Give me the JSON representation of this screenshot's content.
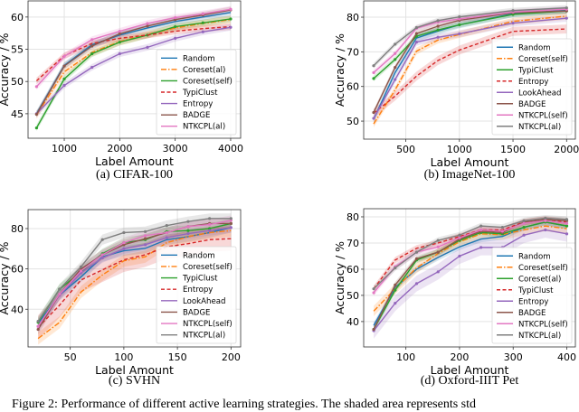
{
  "figure_caption": "Figure 2: Performance of different active learning strategies. The shaded area represents std",
  "style": {
    "colors": [
      "#1f77b4",
      "#ff7f0e",
      "#2ca02c",
      "#d62728",
      "#9467bd",
      "#8c564b",
      "#e377c2",
      "#7f7f7f"
    ],
    "dashes": [
      "",
      "6,2,1.5,2",
      "",
      "4,2.5",
      "",
      "",
      "",
      ""
    ]
  },
  "chart_data": [
    {
      "type": "line",
      "caption": "(a) CIFAR-100",
      "xlabel": "Label Amount",
      "ylabel": "Accuracy / %",
      "xlim": [
        347,
        4180
      ],
      "ylim": [
        41.2,
        62.5
      ],
      "xticks": [
        1000,
        2000,
        3000,
        4000
      ],
      "yticks": [
        45,
        50,
        55,
        60
      ],
      "grid": true,
      "legend_position": "lower-right",
      "x": [
        500,
        1000,
        1500,
        2000,
        2500,
        3000,
        3500,
        4000
      ],
      "series": [
        {
          "name": "Random",
          "values": [
            45.0,
            52.5,
            55.7,
            57.2,
            58.3,
            59.3,
            60.0,
            60.7
          ],
          "std": 0.5
        },
        {
          "name": "Coreset(al)",
          "values": [
            44.8,
            51.5,
            54.5,
            56.2,
            57.3,
            58.3,
            59.0,
            59.6
          ],
          "std": 0.6
        },
        {
          "name": "Coreset(self)",
          "values": [
            42.8,
            50.4,
            54.3,
            56.1,
            57.2,
            58.5,
            59.1,
            59.7
          ],
          "std": 0.5
        },
        {
          "name": "TypiClust",
          "values": [
            50.1,
            54.0,
            55.9,
            56.7,
            57.2,
            57.8,
            58.2,
            58.5
          ],
          "std": 0.5
        },
        {
          "name": "Entropy",
          "values": [
            45.0,
            49.4,
            52.2,
            54.3,
            55.3,
            56.7,
            57.7,
            58.4
          ],
          "std": 0.5
        },
        {
          "name": "BADGE",
          "values": [
            44.9,
            52.4,
            55.5,
            57.4,
            58.6,
            59.6,
            60.3,
            61.1
          ],
          "std": 0.5
        },
        {
          "name": "NTKCPL(al)",
          "values": [
            49.2,
            53.9,
            56.5,
            57.8,
            59.0,
            59.9,
            60.5,
            61.2
          ],
          "std": 0.5
        }
      ]
    },
    {
      "type": "line",
      "caption": "(b) ImageNet-100",
      "xlabel": "Label Amount",
      "ylabel": "Accuracy / %",
      "xlim": [
        107,
        2082
      ],
      "ylim": [
        44.8,
        84.7
      ],
      "xticks": [
        500,
        1000,
        1500,
        2000
      ],
      "yticks": [
        50,
        60,
        70,
        80
      ],
      "grid": true,
      "legend_position": "lower-right",
      "x": [
        200,
        400,
        600,
        800,
        1000,
        1500,
        2000
      ],
      "series": [
        {
          "name": "Random",
          "values": [
            50.5,
            64.0,
            74.0,
            76.0,
            77.8,
            81.0,
            82.0
          ],
          "std": 1.0
        },
        {
          "name": "Coreset(self)",
          "values": [
            49.2,
            59.0,
            70.2,
            73.4,
            75.0,
            78.8,
            80.3
          ],
          "std": 1.0
        },
        {
          "name": "TypiClust",
          "values": [
            62.3,
            67.8,
            74.5,
            76.3,
            77.8,
            80.8,
            81.8
          ],
          "std": 0.8
        },
        {
          "name": "Entropy",
          "values": [
            52.3,
            57.2,
            63.0,
            67.5,
            70.5,
            75.9,
            76.6
          ],
          "std": 1.3
        },
        {
          "name": "LookAhead",
          "values": [
            50.8,
            62.0,
            72.8,
            74.2,
            75.2,
            78.3,
            79.7
          ],
          "std": 1.0
        },
        {
          "name": "BADGE",
          "values": [
            52.5,
            65.5,
            75.3,
            77.4,
            79.1,
            81.3,
            81.8
          ],
          "std": 0.8
        },
        {
          "name": "NTKCPL(self)",
          "values": [
            64.0,
            69.5,
            76.8,
            78.6,
            79.5,
            81.5,
            82.3
          ],
          "std": 0.8
        },
        {
          "name": "NTKCPL(al)",
          "values": [
            66.0,
            72.2,
            77.0,
            79.0,
            80.1,
            81.9,
            82.7
          ],
          "std": 0.8
        }
      ]
    },
    {
      "type": "line",
      "caption": "(c) SVHN",
      "xlabel": "Label Amount",
      "ylabel": "Accuracy / %",
      "xlim": [
        10.6,
        209
      ],
      "ylim": [
        21.3,
        89.4
      ],
      "xticks": [
        50,
        100,
        150,
        200
      ],
      "yticks": [
        40,
        60,
        80
      ],
      "grid": true,
      "legend_position": "lower-right",
      "x": [
        20,
        40,
        60,
        80,
        100,
        120,
        140,
        160,
        180,
        200
      ],
      "series": [
        {
          "name": "Random",
          "values": [
            33,
            47,
            56,
            66,
            69,
            70.2,
            74.5,
            76,
            78,
            80.5
          ],
          "std": 2.5
        },
        {
          "name": "Coreset(self)",
          "values": [
            25.5,
            33.5,
            48.5,
            57,
            64,
            66,
            73,
            76,
            78,
            79
          ],
          "std": 3.0
        },
        {
          "name": "TypiClust",
          "values": [
            33.5,
            50,
            58.5,
            67.5,
            73,
            74.5,
            78.5,
            79,
            80,
            82.5
          ],
          "std": 2.5
        },
        {
          "name": "Entropy",
          "values": [
            31,
            42,
            54.5,
            59.5,
            64.5,
            67,
            71,
            72.5,
            74.5,
            75
          ],
          "std": 6.0
        },
        {
          "name": "LookAhead",
          "values": [
            31.5,
            47,
            58,
            65.5,
            70,
            72,
            75.5,
            77.5,
            79,
            80.5
          ],
          "std": 2.5
        },
        {
          "name": "BADGE",
          "values": [
            30,
            47.5,
            60,
            67,
            72,
            75,
            78,
            81,
            82.5,
            82.5
          ],
          "std": 2.5
        },
        {
          "name": "NTKCPL(self)",
          "values": [
            31.5,
            47.5,
            59,
            67,
            73,
            76.5,
            78,
            81,
            82,
            84
          ],
          "std": 2.5
        },
        {
          "name": "NTKCPL(al)",
          "values": [
            34,
            50,
            61,
            74.5,
            78,
            78.5,
            81.5,
            83.5,
            85,
            85
          ],
          "std": 2.5
        }
      ]
    },
    {
      "type": "line",
      "caption": "(d) Oxford-IIIT Pet",
      "xlabel": "Label Amount",
      "ylabel": "Accuracy / %",
      "xlim": [
        21.3,
        416
      ],
      "ylim": [
        30.3,
        83.1
      ],
      "xticks": [
        100,
        200,
        300,
        400
      ],
      "yticks": [
        40,
        50,
        60,
        70,
        80
      ],
      "grid": true,
      "legend_position": "lower-right",
      "x": [
        40,
        80,
        120,
        160,
        200,
        240,
        280,
        320,
        360,
        400
      ],
      "series": [
        {
          "name": "Random",
          "values": [
            38.5,
            53,
            60,
            64.5,
            68.5,
            71.5,
            72.5,
            76,
            78,
            76.5
          ],
          "std": 1.2
        },
        {
          "name": "Coreset(self)",
          "values": [
            44,
            52.5,
            60.5,
            66,
            70.5,
            73.5,
            73.2,
            75,
            76.5,
            75.5
          ],
          "std": 2.0
        },
        {
          "name": "Coreset(al)",
          "values": [
            37,
            52,
            63.5,
            66.5,
            71,
            74,
            73.5,
            76,
            78,
            76.5
          ],
          "std": 1.2
        },
        {
          "name": "TypiClust",
          "values": [
            52.5,
            63.5,
            68,
            70,
            72.5,
            75,
            75,
            78,
            79,
            78
          ],
          "std": 1.2
        },
        {
          "name": "Entropy",
          "values": [
            36.5,
            47,
            54.5,
            59,
            65,
            68.3,
            68.3,
            73,
            75,
            73.5
          ],
          "std": 3.0
        },
        {
          "name": "BADGE",
          "values": [
            37,
            54,
            64,
            66.5,
            71.5,
            74.5,
            74,
            78,
            79,
            78.5
          ],
          "std": 1.2
        },
        {
          "name": "NTKCPL(self)",
          "values": [
            51,
            61,
            66.5,
            68.5,
            72,
            75,
            74.5,
            77.5,
            78.5,
            77.5
          ],
          "std": 1.2
        },
        {
          "name": "NTKCPL(al)",
          "values": [
            52.5,
            60.5,
            66.5,
            71,
            73,
            76.5,
            76,
            78.5,
            79.5,
            79
          ],
          "std": 1.2
        }
      ]
    }
  ]
}
